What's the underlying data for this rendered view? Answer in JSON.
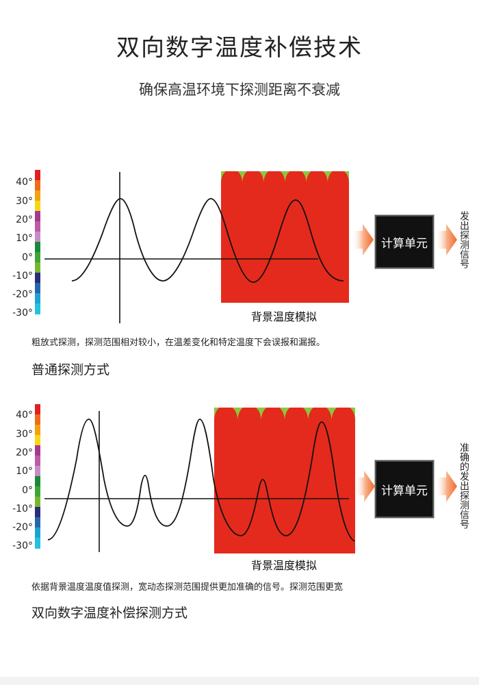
{
  "title": "双向数字温度补偿技术",
  "subtitle": "确保高温环境下探测距离不衰减",
  "scale": {
    "ticks": [
      "40°",
      "30°",
      "20°",
      "10°",
      "0°",
      "-10°",
      "-20°",
      "-30°"
    ],
    "colors": [
      "#e02020",
      "#f06a1a",
      "#f5a011",
      "#f7d712",
      "#a7388f",
      "#c05aa5",
      "#c98cc4",
      "#1a8a3a",
      "#3fa537",
      "#77b82f",
      "#2b2c7a",
      "#2766ae",
      "#1ca3d6",
      "#23c3df"
    ]
  },
  "background_colors": [
    "#e42a1c",
    "#f06a1a",
    "#f7a814",
    "#f8ee1b",
    "#b3428f",
    "#cc77b6",
    "#e0b1d8",
    "#f1d6ee",
    "#0b8a3a",
    "#2a9d3c",
    "#58b238",
    "#8ec63f"
  ],
  "sections": [
    {
      "bg_label": "背景温度模拟",
      "unit_label": "计算单元",
      "output_label": "发出探测信号",
      "description": "粗放式探测，探测范围相对较小，在温差变化和特定温度下会误报和漏报。",
      "mode_label": "普通探测方式"
    },
    {
      "bg_label": "背景温度模拟",
      "unit_label": "计算单元",
      "output_label": "准确的发出探测信号",
      "description": "依据背景温度温度值探测，宽动态探测范围提供更加准确的信号。探测范围更宽",
      "mode_label": "双向数字温度补偿探测方式"
    }
  ],
  "colors": {
    "arrow": "#f07a3a",
    "unit_bg": "#111111",
    "line": "#111111"
  }
}
